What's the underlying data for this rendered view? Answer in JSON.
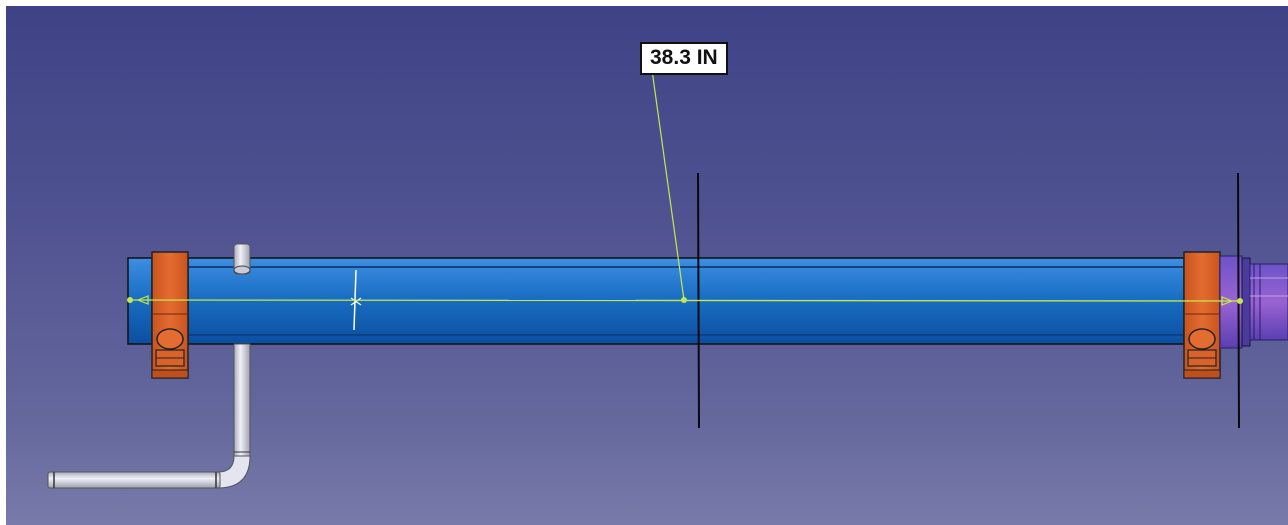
{
  "measurement": {
    "value_label": "38.3 IN"
  },
  "colors": {
    "background_top": "#3f4286",
    "background_bottom": "#787ba9",
    "shaft_blue": "#1a6fc4",
    "clamp_orange": "#d9622a",
    "measure_line": "#c6e84a",
    "flange_purple": "#8a5acb",
    "pipe_gray": "#d7d9e4"
  },
  "icons": {
    "measure_anchor": "point-icon",
    "center_mark": "cross-icon"
  }
}
